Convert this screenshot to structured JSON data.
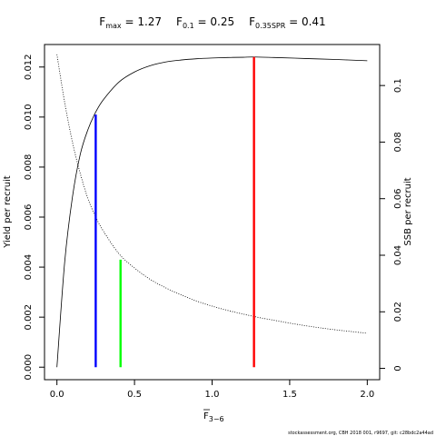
{
  "chart_data": {
    "type": "line",
    "title_parts": [
      {
        "main": "F",
        "sub": "max",
        "rest": " = 1.27"
      },
      {
        "main": "F",
        "sub": "0.1",
        "rest": " = 0.25"
      },
      {
        "main": "F",
        "sub": "0.35SPR",
        "rest": " = 0.41"
      }
    ],
    "xlabel": {
      "main": "F",
      "sub": "3−6"
    },
    "ylabel_left": "Yield per recruit",
    "ylabel_right": "SSB per recruit",
    "xlim": [
      -0.08,
      2.08
    ],
    "ylim_left": [
      -0.0005,
      0.0129
    ],
    "ylim_right": [
      -0.004,
      0.1145
    ],
    "x_ticks": [
      0,
      0.5,
      1.0,
      1.5,
      2.0
    ],
    "x_tick_labels": [
      "0.0",
      "0.5",
      "1.0",
      "1.5",
      "2.0"
    ],
    "y_left_ticks": [
      0,
      0.002,
      0.004,
      0.006,
      0.008,
      0.01,
      0.012
    ],
    "y_left_tick_labels": [
      "0.000",
      "0.002",
      "0.004",
      "0.006",
      "0.008",
      "0.010",
      "0.012"
    ],
    "y_right_ticks": [
      0,
      0.02,
      0.04,
      0.06,
      0.08,
      0.1
    ],
    "y_right_tick_labels": [
      "0",
      "0.02",
      "0.04",
      "0.06",
      "0.08",
      "0.1"
    ],
    "series": [
      {
        "name": "Yield per recruit",
        "axis": "left",
        "style": "solid",
        "x": [
          0,
          0.05,
          0.1,
          0.15,
          0.2,
          0.25,
          0.3,
          0.4,
          0.5,
          0.6,
          0.7,
          0.8,
          0.9,
          1.0,
          1.1,
          1.2,
          1.27,
          1.4,
          1.6,
          1.8,
          2.0
        ],
        "y": [
          0,
          0.0042,
          0.0068,
          0.0085,
          0.0095,
          0.0102,
          0.0107,
          0.0114,
          0.0118,
          0.01205,
          0.0122,
          0.01228,
          0.01233,
          0.01236,
          0.01238,
          0.01239,
          0.0124,
          0.01238,
          0.01234,
          0.0123,
          0.01225
        ]
      },
      {
        "name": "SSB per recruit",
        "axis": "right",
        "style": "dotted",
        "x": [
          0,
          0.05,
          0.1,
          0.15,
          0.2,
          0.25,
          0.3,
          0.4,
          0.5,
          0.6,
          0.7,
          0.8,
          0.9,
          1.0,
          1.1,
          1.2,
          1.3,
          1.4,
          1.5,
          1.6,
          1.7,
          1.8,
          1.9,
          2.0
        ],
        "y": [
          0.111,
          0.094,
          0.08,
          0.069,
          0.06,
          0.0535,
          0.0485,
          0.0405,
          0.0355,
          0.0315,
          0.0285,
          0.026,
          0.0238,
          0.022,
          0.0205,
          0.0192,
          0.018,
          0.017,
          0.016,
          0.0151,
          0.0143,
          0.0136,
          0.013,
          0.0124
        ]
      }
    ],
    "reference_lines": [
      {
        "label": "F0.1",
        "x": 0.25,
        "y_top": 0.0101,
        "axis": "left",
        "color": "#0000ff"
      },
      {
        "label": "F0.35SPR",
        "x": 0.41,
        "y_top": 0.0043,
        "axis": "left",
        "color": "#00ff00"
      },
      {
        "label": "Fmax",
        "x": 1.27,
        "y_top": 0.0124,
        "axis": "left",
        "color": "#ff0000"
      }
    ],
    "grid": false,
    "legend": "none"
  },
  "footer": "stockassessment.org, CBH 2018 001, r9697, git: c28bdc2a44ad"
}
